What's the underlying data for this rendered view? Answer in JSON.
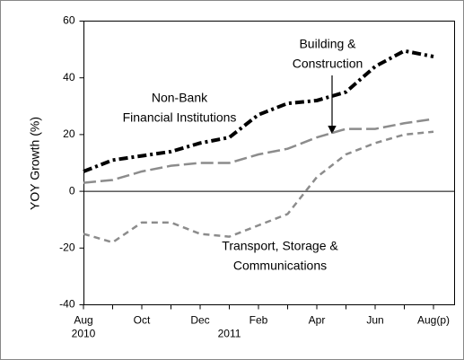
{
  "chart_data": {
    "type": "line",
    "y_label": "YOY Growth (%)",
    "categories": [
      "Aug",
      null,
      "Oct",
      null,
      "Dec",
      null,
      "Feb",
      null,
      "Apr",
      null,
      "Jun",
      null,
      "Aug(p)"
    ],
    "years": [
      "2010",
      null,
      null,
      null,
      null,
      "2011",
      null,
      null,
      null,
      null,
      null,
      null,
      null
    ],
    "ylim": [
      -40,
      60
    ],
    "yticks": [
      -40,
      -20,
      0,
      20,
      40,
      60
    ],
    "series": [
      {
        "name": [
          "Non-Bank",
          "Financial Institutions"
        ],
        "color": "#000000",
        "values": [
          7,
          11,
          12.5,
          14,
          17,
          19,
          27,
          31,
          32,
          35,
          44,
          49.5,
          47.5
        ]
      },
      {
        "name": [
          "Building &",
          "Construction"
        ],
        "color": "#8c8c8c",
        "values": [
          3,
          4,
          7,
          9,
          10,
          10,
          13,
          15,
          19,
          22,
          22,
          24,
          25.5
        ]
      },
      {
        "name": [
          "Transport, Storage &",
          "Communications"
        ],
        "color": "#8c8c8c",
        "values": [
          -15,
          -18,
          -11,
          -11,
          -15,
          -16,
          -12,
          -8,
          5,
          13,
          17,
          20,
          21
        ]
      }
    ]
  }
}
